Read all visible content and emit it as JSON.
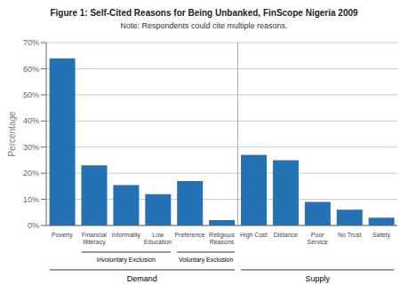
{
  "chart_data": {
    "type": "bar",
    "title": "Figure 1: Self-Cited Reasons for Being Unbanked, FinScope Nigeria 2009",
    "subtitle": "Note: Respondents could cite multiple reasons.",
    "y_label": "Percentage",
    "categories": [
      "Poverty",
      "Financial\nIlliteracy",
      "Informality",
      "Low\nEducation",
      "Preference",
      "Religious\nReasons",
      "High Cost",
      "Distance",
      "Poor\nService",
      "No Trust",
      "Safety"
    ],
    "values": [
      0.64,
      0.23,
      0.155,
      0.12,
      0.17,
      0.02,
      0.27,
      0.25,
      0.09,
      0.06,
      0.03
    ],
    "color": "#2472B3",
    "ylim": [
      0,
      0.7
    ],
    "yticks": [
      {
        "value": 0.0,
        "label": "0%"
      },
      {
        "value": 0.1,
        "label": "10%"
      },
      {
        "value": 0.2,
        "label": "20%"
      },
      {
        "value": 0.3,
        "label": "30%"
      },
      {
        "value": 0.4,
        "label": "40%"
      },
      {
        "value": 0.5,
        "label": "50%"
      },
      {
        "value": 0.6,
        "label": "60%"
      },
      {
        "value": 0.7,
        "label": "70%"
      }
    ],
    "grid": true,
    "annotations": [
      {
        "text": "Involuntary Exclusion",
        "from": "Financial\nIlliteracy",
        "to": "Low\nEducation"
      },
      {
        "text": "Voluntary Exclusion",
        "from": "Preference",
        "to": "Religious\nReasons"
      },
      {
        "text": "Demand",
        "from": "Poverty",
        "to": "Religious\nReasons"
      },
      {
        "text": "Supply",
        "from": "High Cost",
        "to": "Safety"
      }
    ]
  }
}
